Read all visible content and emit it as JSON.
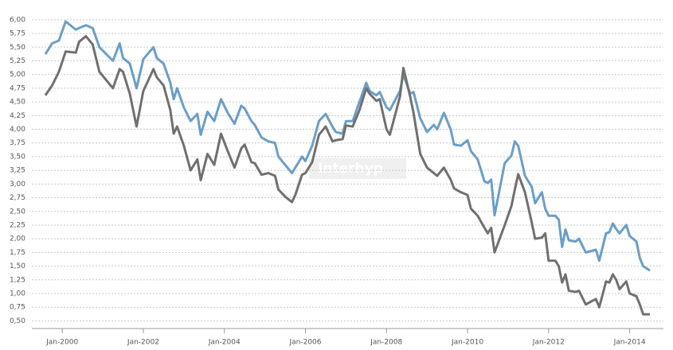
{
  "chart_data": {
    "type": "line",
    "watermark": "Interhyp",
    "x": [
      "Aug-1999",
      "Oct-1999",
      "Dec-1999",
      "Feb-2000",
      "May-2000",
      "Jun-2000",
      "Aug-2000",
      "Oct-2000",
      "Dec-2000",
      "Apr-2001",
      "Jun-2001",
      "Jul-2001",
      "Sep-2001",
      "Nov-2001",
      "Jan-2002",
      "Apr-2002",
      "May-2002",
      "Jul-2002",
      "Sep-2002",
      "Oct-2002",
      "Nov-2002",
      "Jan-2003",
      "Mar-2003",
      "May-2003",
      "Jun-2003",
      "Aug-2003",
      "Oct-2003",
      "Dec-2003",
      "Feb-2004",
      "Apr-2004",
      "Jun-2004",
      "Jul-2004",
      "Sep-2004",
      "Oct-2004",
      "Dec-2004",
      "Feb-2005",
      "Apr-2005",
      "May-2005",
      "Jul-2005",
      "Sep-2005",
      "Oct-2005",
      "Dec-2005",
      "Jan-2006",
      "Mar-2006",
      "May-2006",
      "Jul-2006",
      "Sep-2006",
      "Oct-2006",
      "Dec-2006",
      "Jan-2007",
      "Mar-2007",
      "May-2007",
      "Jul-2007",
      "Aug-2007",
      "Oct-2007",
      "Nov-2007",
      "Jan-2008",
      "Feb-2008",
      "May-2008",
      "Jun-2008",
      "Aug-2008",
      "Sep-2008",
      "Nov-2008",
      "Jan-2009",
      "Mar-2009",
      "Apr-2009",
      "Jun-2009",
      "Aug-2009",
      "Sep-2009",
      "Nov-2009",
      "Jan-2010",
      "Feb-2010",
      "Apr-2010",
      "Jun-2010",
      "Jul-2010",
      "Aug-2010",
      "Sep-2010",
      "Dec-2010",
      "Feb-2011",
      "Mar-2011",
      "Apr-2011",
      "Jun-2011",
      "Aug-2011",
      "Sep-2011",
      "Nov-2011",
      "Dec-2011",
      "Jan-2012",
      "Mar-2012",
      "Apr-2012",
      "May-2012",
      "Jun-2012",
      "Jul-2012",
      "Sep-2012",
      "Oct-2012",
      "Dec-2012",
      "Mar-2013",
      "Apr-2013",
      "Jun-2013",
      "Jul-2013",
      "Aug-2013",
      "Sep-2013",
      "Oct-2013",
      "Dec-2013",
      "Jan-2014",
      "Mar-2014",
      "Apr-2014",
      "May-2014",
      "Jul-2014"
    ],
    "series": [
      {
        "color": "#6a9ec8",
        "values": [
          5.37,
          5.57,
          5.62,
          5.97,
          5.82,
          5.85,
          5.9,
          5.85,
          5.5,
          5.25,
          5.57,
          5.3,
          5.2,
          4.75,
          5.28,
          5.5,
          5.3,
          5.2,
          4.85,
          4.55,
          4.75,
          4.4,
          4.15,
          4.28,
          3.9,
          4.32,
          4.15,
          4.55,
          4.3,
          4.1,
          4.43,
          4.38,
          4.15,
          4.08,
          3.85,
          3.78,
          3.75,
          3.5,
          3.35,
          3.2,
          3.3,
          3.5,
          3.42,
          3.7,
          4.15,
          4.28,
          4.05,
          3.95,
          3.92,
          4.15,
          4.15,
          4.5,
          4.85,
          4.7,
          4.62,
          4.68,
          4.4,
          4.35,
          4.7,
          5.0,
          4.65,
          4.68,
          4.2,
          3.95,
          4.08,
          4.0,
          4.3,
          4.0,
          3.72,
          3.7,
          3.8,
          3.6,
          3.45,
          3.05,
          3.02,
          3.08,
          2.43,
          3.38,
          3.52,
          3.78,
          3.7,
          3.15,
          2.95,
          2.65,
          2.85,
          2.55,
          2.42,
          2.42,
          2.35,
          1.85,
          2.17,
          1.97,
          1.95,
          2.0,
          1.75,
          1.8,
          1.6,
          2.1,
          2.12,
          2.28,
          2.18,
          2.1,
          2.25,
          2.05,
          1.95,
          1.65,
          1.5,
          1.42
        ]
      },
      {
        "color": "#707070",
        "values": [
          4.62,
          4.8,
          5.05,
          5.42,
          5.4,
          5.6,
          5.7,
          5.55,
          5.05,
          4.75,
          5.1,
          5.05,
          4.65,
          4.05,
          4.7,
          5.1,
          4.95,
          4.8,
          4.35,
          3.92,
          4.05,
          3.7,
          3.25,
          3.45,
          3.07,
          3.55,
          3.35,
          3.92,
          3.6,
          3.3,
          3.65,
          3.72,
          3.4,
          3.38,
          3.17,
          3.2,
          3.15,
          2.9,
          2.77,
          2.67,
          2.8,
          3.17,
          3.2,
          3.4,
          3.9,
          4.05,
          3.78,
          3.8,
          3.82,
          4.07,
          4.05,
          4.35,
          4.75,
          4.65,
          4.52,
          4.55,
          4.0,
          3.9,
          4.6,
          5.12,
          4.6,
          4.3,
          3.55,
          3.3,
          3.2,
          3.15,
          3.3,
          3.08,
          2.92,
          2.85,
          2.8,
          2.55,
          2.42,
          2.2,
          2.1,
          2.2,
          1.75,
          2.25,
          2.6,
          2.9,
          3.18,
          2.85,
          2.3,
          2.0,
          2.02,
          2.1,
          1.6,
          1.6,
          1.5,
          1.2,
          1.35,
          1.05,
          1.03,
          1.05,
          0.8,
          0.9,
          0.75,
          1.22,
          1.2,
          1.35,
          1.25,
          1.08,
          1.22,
          1.0,
          0.95,
          0.8,
          0.62,
          0.62
        ]
      }
    ],
    "xlim": [
      "Apr-1999",
      "Nov-2014"
    ],
    "xticks": [
      "Jan-2000",
      "Jan-2002",
      "Jan-2004",
      "Jan-2006",
      "Jan-2008",
      "Jan-2010",
      "Jan-2012",
      "Jan-2014"
    ],
    "ylim": [
      0.375,
      6.1
    ],
    "yticks": [
      {
        "value": 0.5,
        "label": "0,50"
      },
      {
        "value": 0.75,
        "label": "0,75"
      },
      {
        "value": 1,
        "label": "1,00"
      },
      {
        "value": 1.25,
        "label": "1,25"
      },
      {
        "value": 1.5,
        "label": "1,50"
      },
      {
        "value": 1.75,
        "label": "1,75"
      },
      {
        "value": 2,
        "label": "2,00"
      },
      {
        "value": 2.25,
        "label": "2,25"
      },
      {
        "value": 2.5,
        "label": "2,50"
      },
      {
        "value": 2.75,
        "label": "2,75"
      },
      {
        "value": 3,
        "label": "3,00"
      },
      {
        "value": 3.25,
        "label": "3,25"
      },
      {
        "value": 3.5,
        "label": "3,50"
      },
      {
        "value": 3.75,
        "label": "3,75"
      },
      {
        "value": 4,
        "label": "4,00"
      },
      {
        "value": 4.25,
        "label": "4,25"
      },
      {
        "value": 4.5,
        "label": "4,50"
      },
      {
        "value": 4.75,
        "label": "4,75"
      },
      {
        "value": 5,
        "label": "5,00"
      },
      {
        "value": 5.25,
        "label": "5,25"
      },
      {
        "value": 5.5,
        "label": "5,50"
      },
      {
        "value": 5.75,
        "label": "5,75"
      },
      {
        "value": 6,
        "label": "6,00"
      }
    ],
    "grid": true
  }
}
